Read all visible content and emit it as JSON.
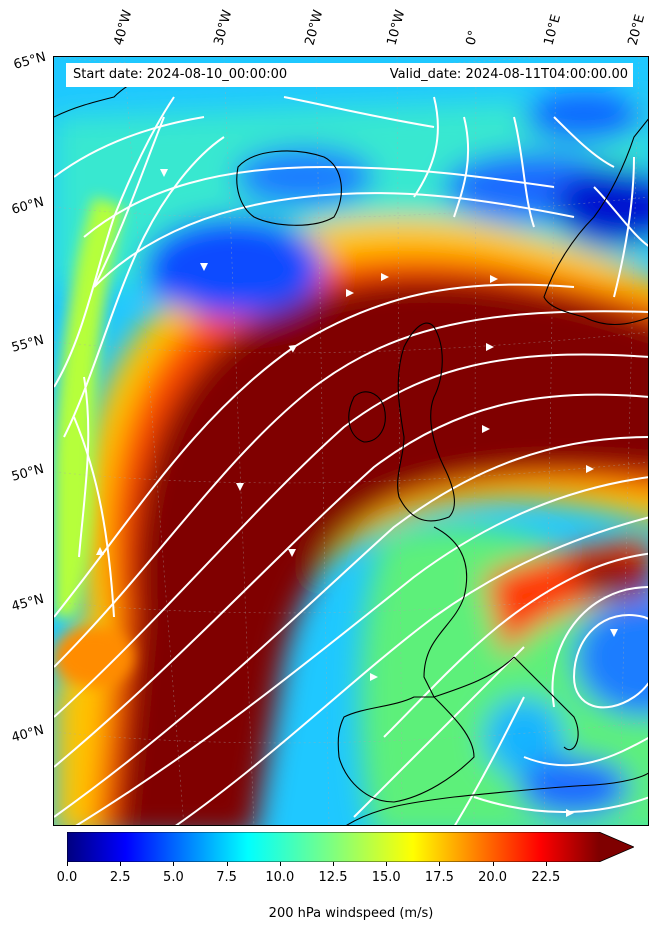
{
  "map": {
    "start_label": "Start date: 2024-08-10_00:00:00",
    "valid_label": "Valid_date: 2024-08-11T04:00:00.00",
    "longitude_labels": [
      "40°W",
      "30°W",
      "20°W",
      "10°W",
      "0°",
      "10°E",
      "20°E"
    ],
    "latitude_labels": [
      "65°N",
      "60°N",
      "55°N",
      "50°N",
      "45°N",
      "40°N"
    ],
    "field": "200 hPa windspeed",
    "streamline_color": "#ffffff",
    "coastline_color": "#000000",
    "colormap": "jet"
  },
  "colorbar": {
    "title": "200 hPa windspeed (m/s)",
    "tick_labels": [
      "0.0",
      "2.5",
      "5.0",
      "7.5",
      "10.0",
      "12.5",
      "15.0",
      "17.5",
      "20.0",
      "22.5"
    ],
    "min": 0,
    "max": 25,
    "extend": "max"
  }
}
